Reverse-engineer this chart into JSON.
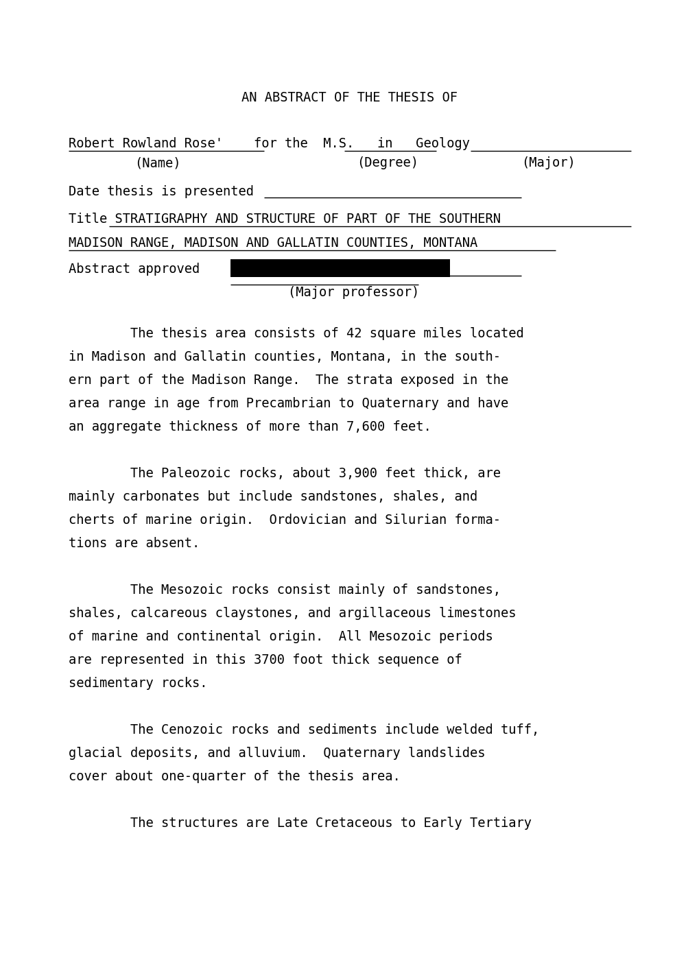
{
  "bg_color": "#ffffff",
  "page_width": 10.2,
  "page_height": 13.97,
  "header": "AN ABSTRACT OF THE THESIS OF",
  "title_line1": "STRATIGRAPHY AND STRUCTURE OF PART OF THE SOUTHERN",
  "title_line2": "MADISON RANGE, MADISON AND GALLATIN COUNTIES, MONTANA",
  "paragraphs": [
    [
      "        The thesis area consists of 42 square miles located",
      "in Madison and Gallatin counties, Montana, in the south-",
      "ern part of the Madison Range.  The strata exposed in the",
      "area range in age from Precambrian to Quaternary and have",
      "an aggregate thickness of more than 7,600 feet."
    ],
    [
      "        The Paleozoic rocks, about 3,900 feet thick, are",
      "mainly carbonates but include sandstones, shales, and",
      "cherts of marine origin.  Ordovician and Silurian forma-",
      "tions are absent."
    ],
    [
      "        The Mesozoic rocks consist mainly of sandstones,",
      "shales, calcareous claystones, and argillaceous limestones",
      "of marine and continental origin.  All Mesozoic periods",
      "are represented in this 3700 foot thick sequence of",
      "sedimentary rocks."
    ],
    [
      "        The Cenozoic rocks and sediments include welded tuff,",
      "glacial deposits, and alluvium.  Quaternary landslides",
      "cover about one-quarter of the thesis area."
    ],
    [
      "        The structures are Late Cretaceous to Early Tertiary"
    ]
  ]
}
